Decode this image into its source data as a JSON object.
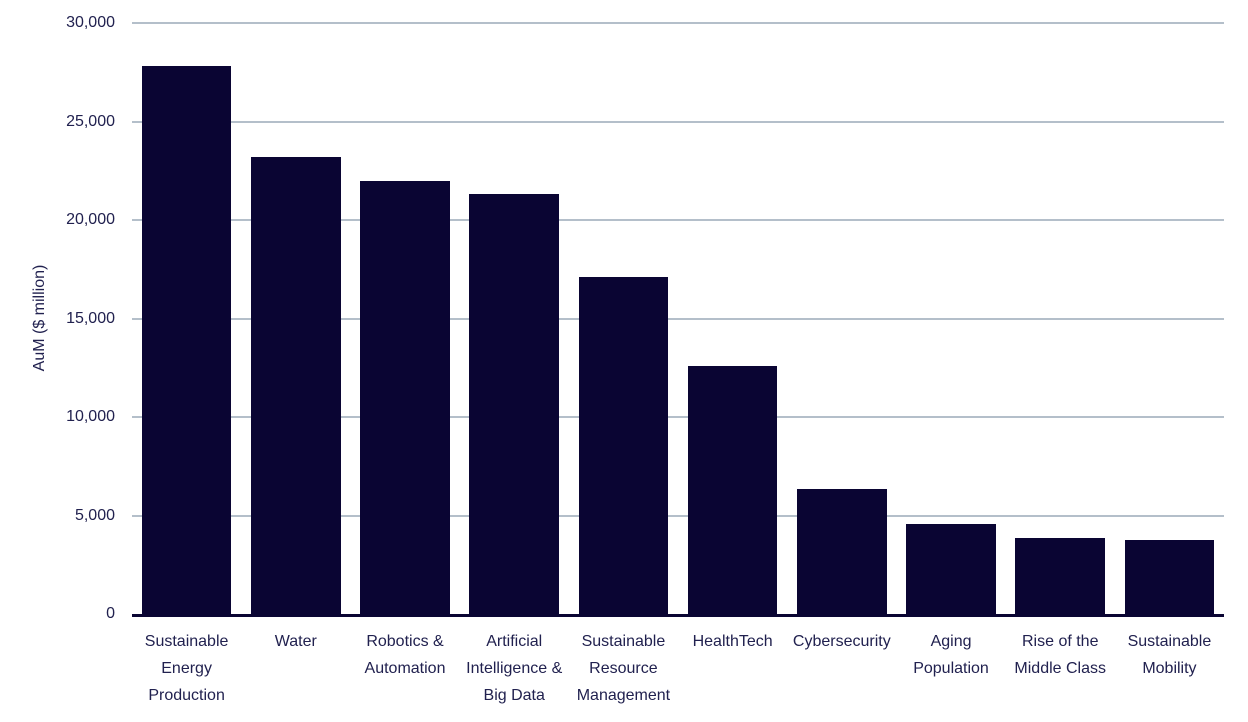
{
  "page": {
    "background": "#FFFFFF"
  },
  "colors": {
    "bar": "#0A0533",
    "gridline": "#B4BFCA",
    "axis_line": "#0A0533",
    "text": "#21214F"
  },
  "chart_data": {
    "type": "bar",
    "title": "",
    "xlabel": "",
    "ylabel": "AuM ($ million)",
    "ylim": [
      0,
      30000
    ],
    "ytick_step": 5000,
    "grid": true,
    "legend": false,
    "categories": [
      "Sustainable Energy Production",
      "Water",
      "Robotics & Automation",
      "Artificial Intelligence & Big Data",
      "Sustainable Resource Management",
      "HealthTech",
      "Cybersecurity",
      "Aging Population",
      "Rise of the Middle Class",
      "Sustainable Mobility"
    ],
    "label_lines": [
      [
        "Sustainable",
        "Energy",
        "Production"
      ],
      [
        "Water"
      ],
      [
        "Robotics &",
        "Automation"
      ],
      [
        "Artificial",
        "Intelligence &",
        "Big Data"
      ],
      [
        "Sustainable",
        "Resource",
        "Management"
      ],
      [
        "HealthTech"
      ],
      [
        "Cybersecurity"
      ],
      [
        "Aging",
        "Population"
      ],
      [
        "Rise of the",
        "Middle Class"
      ],
      [
        "Sustainable",
        "Mobility"
      ]
    ],
    "values": [
      27800,
      23200,
      22000,
      21300,
      17100,
      12600,
      6350,
      4550,
      3850,
      3750
    ]
  }
}
